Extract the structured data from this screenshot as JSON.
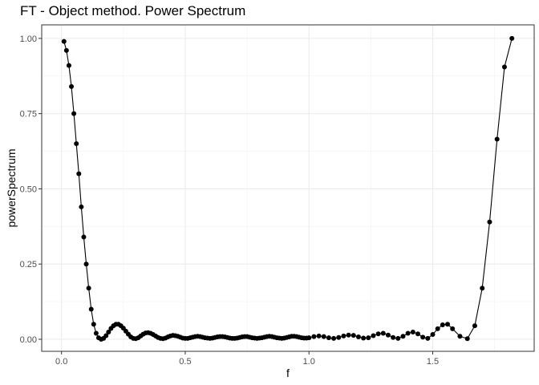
{
  "chart_data": {
    "type": "line",
    "title": "FT - Object method. Power Spectrum",
    "xlabel": "f",
    "ylabel": "powerSpectrum",
    "xlim": [
      -0.08,
      1.91
    ],
    "ylim": [
      -0.04,
      1.045
    ],
    "x_ticks": [
      0.0,
      0.5,
      1.0,
      1.5
    ],
    "x_tick_labels": [
      "0.0",
      "0.5",
      "1.0",
      "1.5"
    ],
    "y_ticks": [
      0.0,
      0.25,
      0.5,
      0.75,
      1.0
    ],
    "y_tick_labels": [
      "0.00",
      "0.25",
      "0.50",
      "0.75",
      "1.00"
    ],
    "grid": true,
    "legend": "none",
    "series_color": "#000000",
    "series": [
      {
        "x": [
          0.01,
          0.02,
          0.03,
          0.04,
          0.05,
          0.06,
          0.07,
          0.08,
          0.09,
          0.1,
          0.11,
          0.12,
          0.13,
          0.14,
          0.15,
          0.16,
          0.17,
          0.18,
          0.19,
          0.2,
          0.21,
          0.22,
          0.23,
          0.24,
          0.25,
          0.26,
          0.27,
          0.28,
          0.29,
          0.3,
          0.31,
          0.32,
          0.33,
          0.34,
          0.35,
          0.36,
          0.37,
          0.38,
          0.39,
          0.4,
          0.41,
          0.42,
          0.43,
          0.44,
          0.45,
          0.46,
          0.47,
          0.48,
          0.49,
          0.5,
          0.51,
          0.52,
          0.53,
          0.54,
          0.55,
          0.56,
          0.57,
          0.58,
          0.59,
          0.6,
          0.61,
          0.62,
          0.63,
          0.64,
          0.65,
          0.66,
          0.67,
          0.68,
          0.69,
          0.7,
          0.71,
          0.72,
          0.73,
          0.74,
          0.75,
          0.76,
          0.77,
          0.78,
          0.79,
          0.8,
          0.81,
          0.82,
          0.83,
          0.84,
          0.85,
          0.86,
          0.87,
          0.88,
          0.89,
          0.9,
          0.91,
          0.92,
          0.93,
          0.94,
          0.95,
          0.96,
          0.97,
          0.98,
          0.99,
          1.0,
          1.02,
          1.04,
          1.06,
          1.08,
          1.1,
          1.12,
          1.14,
          1.16,
          1.18,
          1.2,
          1.22,
          1.24,
          1.26,
          1.28,
          1.3,
          1.32,
          1.34,
          1.36,
          1.38,
          1.4,
          1.42,
          1.44,
          1.46,
          1.48,
          1.5,
          1.52,
          1.54,
          1.56,
          1.58,
          1.61,
          1.64,
          1.67,
          1.7,
          1.73,
          1.76,
          1.79,
          1.82
        ],
        "y": [
          0.99,
          0.96,
          0.91,
          0.84,
          0.75,
          0.65,
          0.55,
          0.44,
          0.34,
          0.25,
          0.17,
          0.1,
          0.05,
          0.02,
          0.005,
          0.0,
          0.003,
          0.012,
          0.024,
          0.036,
          0.045,
          0.05,
          0.05,
          0.045,
          0.037,
          0.027,
          0.017,
          0.008,
          0.003,
          0.002,
          0.005,
          0.011,
          0.017,
          0.021,
          0.022,
          0.02,
          0.016,
          0.011,
          0.006,
          0.003,
          0.002,
          0.004,
          0.008,
          0.011,
          0.013,
          0.012,
          0.01,
          0.007,
          0.004,
          0.003,
          0.003,
          0.005,
          0.007,
          0.009,
          0.01,
          0.009,
          0.007,
          0.005,
          0.004,
          0.003,
          0.004,
          0.006,
          0.008,
          0.009,
          0.009,
          0.008,
          0.006,
          0.004,
          0.003,
          0.003,
          0.004,
          0.006,
          0.008,
          0.009,
          0.009,
          0.007,
          0.005,
          0.004,
          0.003,
          0.004,
          0.005,
          0.007,
          0.009,
          0.01,
          0.009,
          0.007,
          0.005,
          0.004,
          0.003,
          0.004,
          0.006,
          0.008,
          0.01,
          0.01,
          0.009,
          0.007,
          0.005,
          0.004,
          0.004,
          0.005,
          0.009,
          0.011,
          0.009,
          0.005,
          0.003,
          0.006,
          0.011,
          0.014,
          0.013,
          0.008,
          0.004,
          0.005,
          0.012,
          0.018,
          0.02,
          0.014,
          0.006,
          0.003,
          0.01,
          0.02,
          0.024,
          0.018,
          0.007,
          0.003,
          0.016,
          0.035,
          0.048,
          0.05,
          0.035,
          0.01,
          0.002,
          0.045,
          0.17,
          0.39,
          0.665,
          0.905,
          1.0
        ]
      }
    ]
  }
}
